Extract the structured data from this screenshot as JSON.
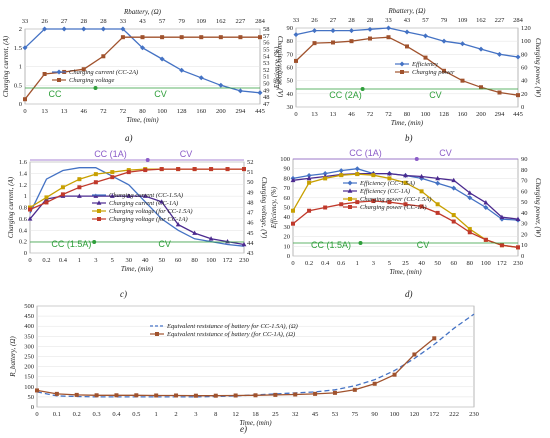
{
  "chart_data": [
    {
      "type": "line",
      "label": "a)",
      "xlabel": "Time, (min)",
      "ylabel": "Charging current, (A)",
      "y2label": "Charging voltage, (V)",
      "toplabel": "Rbattery, (Ω)",
      "x": [
        "0",
        "13",
        "13",
        "46",
        "72",
        "72",
        "80",
        "100",
        "128",
        "160",
        "200",
        "294",
        "445"
      ],
      "top_ticks": [
        "33",
        "26",
        "27",
        "28",
        "28",
        "33",
        "43",
        "57",
        "79",
        "109",
        "162",
        "227",
        "284"
      ],
      "ylim": [
        0,
        2
      ],
      "yticks": [
        "0",
        "0.5",
        "1",
        "1.5",
        "2"
      ],
      "y2lim": [
        47,
        58
      ],
      "y2ticks": [
        "47",
        "48",
        "49",
        "50",
        "51",
        "52",
        "53",
        "54",
        "55",
        "56",
        "57",
        "58"
      ],
      "modes": [
        {
          "text": "CC",
          "color": "#2e9e3a"
        },
        {
          "text": "CV",
          "color": "#2e9e3a"
        }
      ],
      "legend_position": "inside-left",
      "series": [
        {
          "name": "Charging current (CC-2A)",
          "axis": "left",
          "color": "#4472c4",
          "marker": "diamond",
          "values": [
            1.5,
            2.0,
            2.0,
            2.0,
            2.0,
            2.0,
            1.5,
            1.2,
            0.9,
            0.7,
            0.5,
            0.35,
            0.3
          ]
        },
        {
          "name": "Charging voltage",
          "axis": "right",
          "color": "#a0522d",
          "marker": "square",
          "values": [
            47.7,
            51.4,
            51.7,
            52.1,
            54.0,
            56.8,
            56.8,
            56.8,
            56.8,
            56.8,
            56.8,
            56.8,
            56.8
          ]
        }
      ]
    },
    {
      "type": "line",
      "label": "b)",
      "xlabel": "Time, (min)",
      "ylabel": "Efficiency, (%)",
      "y2label": "Charging power, (W)",
      "toplabel": "Rbattery, (Ω)",
      "x": [
        "0",
        "13",
        "13",
        "46",
        "72",
        "72",
        "80",
        "100",
        "128",
        "160",
        "200",
        "294",
        "445"
      ],
      "top_ticks": [
        "33",
        "26",
        "27",
        "28",
        "28",
        "33",
        "43",
        "57",
        "79",
        "109",
        "162",
        "227",
        "284"
      ],
      "ylim": [
        30,
        90
      ],
      "yticks": [
        "30",
        "40",
        "50",
        "60",
        "70",
        "80",
        "90"
      ],
      "y2lim": [
        0,
        120
      ],
      "y2ticks": [
        "0",
        "20",
        "40",
        "60",
        "80",
        "100",
        "120"
      ],
      "modes": [
        {
          "text": "CC (2A)",
          "color": "#2e9e3a"
        },
        {
          "text": "CV",
          "color": "#2e9e3a"
        }
      ],
      "legend_position": "center",
      "series": [
        {
          "name": "Efficiency",
          "axis": "left",
          "color": "#4472c4",
          "marker": "diamond",
          "values": [
            85,
            88,
            88,
            88,
            89,
            90,
            87,
            84,
            80,
            78,
            74,
            70,
            68
          ]
        },
        {
          "name": "Charging power",
          "axis": "right",
          "color": "#a0522d",
          "marker": "square",
          "values": [
            70,
            97,
            98,
            100,
            104,
            106,
            92,
            75,
            55,
            40,
            30,
            22,
            18
          ]
        }
      ]
    },
    {
      "type": "line",
      "label": "c)",
      "xlabel": "Time, (min)",
      "ylabel": "Charging current, (A)",
      "y2label": "Charging voltage, (V)",
      "x": [
        "0",
        "0.2",
        "0.4",
        "1",
        "3",
        "5",
        "30",
        "40",
        "50",
        "60",
        "80",
        "100",
        "172",
        "230"
      ],
      "ylim": [
        0,
        1.6
      ],
      "yticks": [
        "0",
        "0.2",
        "0.4",
        "0.6",
        "0.8",
        "1",
        "1.2",
        "1.4",
        "1.6"
      ],
      "y2lim": [
        43,
        52
      ],
      "y2ticks": [
        "43",
        "44",
        "45",
        "46",
        "47",
        "48",
        "49",
        "50",
        "51",
        "52"
      ],
      "modes": [
        {
          "text": "CC (1A)",
          "color": "#8b5cc8"
        },
        {
          "text": "CV",
          "color": "#8b5cc8"
        },
        {
          "text": "CC (1.5A)",
          "color": "#2e9e3a"
        },
        {
          "text": "CV",
          "color": "#2e9e3a"
        }
      ],
      "legend_position": "center",
      "series": [
        {
          "name": "Charging current (CC-1.5A)",
          "axis": "left",
          "color": "#4472c4",
          "marker": "none",
          "values": [
            0.7,
            1.3,
            1.45,
            1.5,
            1.5,
            1.35,
            1.2,
            0.9,
            0.6,
            0.4,
            0.25,
            0.2,
            0.15,
            0.12
          ]
        },
        {
          "name": "Charging current (CC-1A)",
          "axis": "left",
          "color": "#4b2a8f",
          "marker": "triangle",
          "values": [
            0.6,
            0.95,
            1.0,
            1.0,
            1.0,
            1.0,
            1.0,
            1.0,
            0.9,
            0.5,
            0.35,
            0.25,
            0.2,
            0.15
          ]
        },
        {
          "name": "Charging voltage (for CC-1.5A)",
          "axis": "right",
          "color": "#c8a000",
          "marker": "square",
          "values": [
            47.5,
            48.5,
            49.5,
            50.3,
            50.8,
            51.0,
            51.2,
            51.3,
            51.3,
            51.3,
            51.3,
            51.3,
            51.3,
            51.3
          ]
        },
        {
          "name": "Charging voltage (for CC-1A)",
          "axis": "right",
          "color": "#c0392b",
          "marker": "square",
          "values": [
            47.3,
            48.0,
            48.8,
            49.5,
            50.0,
            50.5,
            51.0,
            51.2,
            51.3,
            51.3,
            51.3,
            51.3,
            51.3,
            51.3
          ]
        }
      ]
    },
    {
      "type": "line",
      "label": "d)",
      "xlabel": "Time, (min)",
      "ylabel": "Efficiency, (%)",
      "y2label": "Charging power, (W)",
      "x": [
        "0",
        "0.2",
        "0.4",
        "0.6",
        "1",
        "3",
        "5",
        "25",
        "40",
        "50",
        "60",
        "80",
        "100",
        "172",
        "230"
      ],
      "ylim": [
        0,
        100
      ],
      "yticks": [
        "0",
        "10",
        "20",
        "30",
        "40",
        "50",
        "60",
        "70",
        "80",
        "90",
        "100"
      ],
      "y2lim": [
        0,
        90
      ],
      "y2ticks": [
        "0",
        "10",
        "20",
        "30",
        "40",
        "50",
        "60",
        "70",
        "80",
        "90"
      ],
      "modes": [
        {
          "text": "CC (1A)",
          "color": "#8b5cc8"
        },
        {
          "text": "CV",
          "color": "#8b5cc8"
        },
        {
          "text": "CC (1.5A)",
          "color": "#2e9e3a"
        },
        {
          "text": "CV",
          "color": "#2e9e3a"
        }
      ],
      "legend_position": "center",
      "series": [
        {
          "name": "Efficiency (CC-1.5A)",
          "axis": "left",
          "color": "#4472c4",
          "marker": "diamond",
          "values": [
            80,
            83,
            85,
            88,
            90,
            85,
            85,
            83,
            80,
            75,
            70,
            60,
            50,
            38,
            37
          ]
        },
        {
          "name": "Efficiency (CC-1A)",
          "axis": "left",
          "color": "#4b2a8f",
          "marker": "triangle",
          "values": [
            78,
            80,
            82,
            84,
            85,
            85,
            85,
            83,
            82,
            80,
            78,
            65,
            55,
            40,
            38
          ]
        },
        {
          "name": "Charging power (CC-1.5A)",
          "axis": "right",
          "color": "#c8a000",
          "marker": "square",
          "values": [
            42,
            68,
            72,
            75,
            76,
            75,
            72,
            68,
            60,
            48,
            38,
            25,
            15,
            10,
            8
          ]
        },
        {
          "name": "Charging power (CC-1A)",
          "axis": "right",
          "color": "#c0392b",
          "marker": "square",
          "values": [
            30,
            42,
            45,
            48,
            50,
            51,
            50,
            48,
            46,
            40,
            32,
            22,
            15,
            10,
            8
          ]
        }
      ]
    },
    {
      "type": "line",
      "label": "e)",
      "xlabel": "Time, (min)",
      "ylabel": "R_battery, (Ω)",
      "x": [
        "0",
        "0.1",
        "0.2",
        "0.3",
        "0.4",
        "0.5",
        "1",
        "2",
        "3",
        "8",
        "12",
        "18",
        "25",
        "32",
        "45",
        "53",
        "75",
        "90",
        "100",
        "120",
        "172",
        "222",
        "230"
      ],
      "ylim": [
        0,
        500
      ],
      "yticks": [
        "0",
        "50",
        "100",
        "150",
        "200",
        "250",
        "300",
        "350",
        "400",
        "450",
        "500"
      ],
      "legend_position": "center",
      "series": [
        {
          "name": "Equivalent resistance of battery for CC-1.5A), (Ω)",
          "color": "#4472c4",
          "marker": "none",
          "dash": true,
          "values": [
            75,
            55,
            52,
            50,
            50,
            50,
            50,
            50,
            50,
            52,
            55,
            60,
            65,
            70,
            75,
            85,
            105,
            135,
            180,
            240,
            310,
            390,
            460
          ]
        },
        {
          "name": "Equivalent resistance of battery (for CC-1A), (Ω)",
          "color": "#a0522d",
          "marker": "square",
          "dash": false,
          "values": [
            82,
            65,
            60,
            58,
            58,
            58,
            57,
            57,
            56,
            56,
            57,
            58,
            60,
            62,
            65,
            70,
            85,
            115,
            160,
            260,
            340,
            null,
            null
          ]
        }
      ]
    }
  ]
}
